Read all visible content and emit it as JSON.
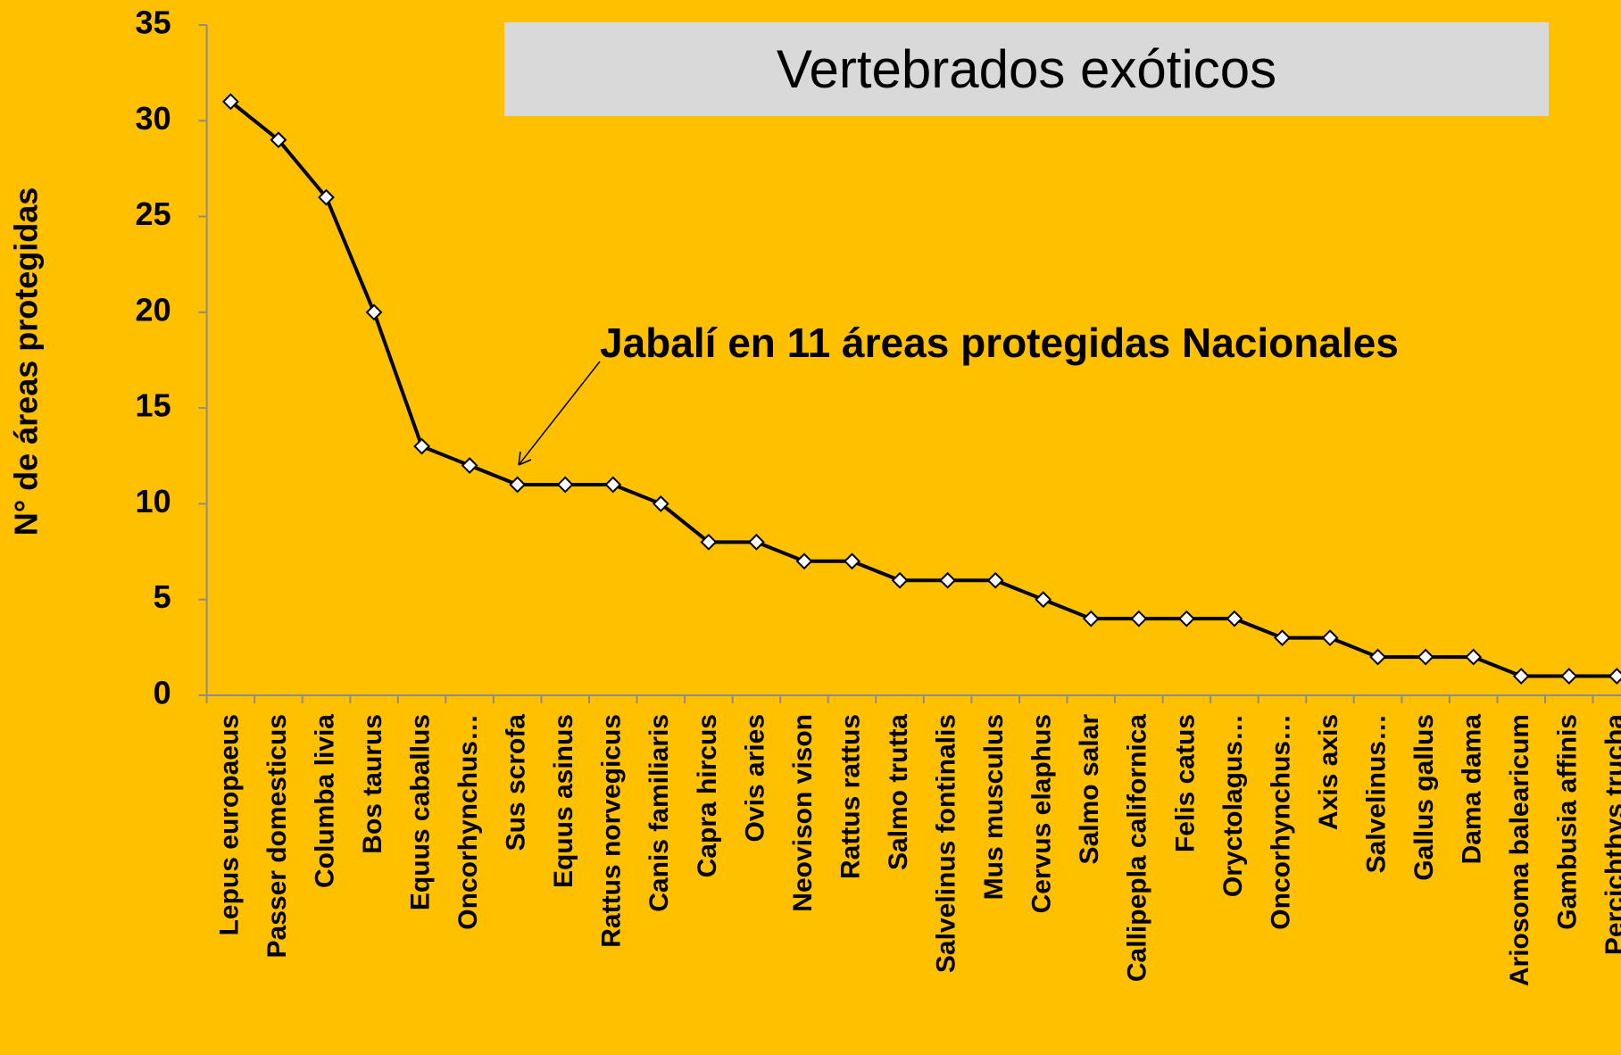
{
  "chart_data": {
    "type": "line",
    "title": "Vertebrados exóticos",
    "y_label": "N° de áreas protegidas",
    "annotation": "Jabalí en 11 áreas protegidas Nacionales",
    "categories": [
      "Lepus europaeus",
      "Passer domesticus",
      "Columba livia",
      "Bos taurus",
      "Equus caballus",
      "Oncorhynchus…",
      "Sus scrofa",
      "Equus asinus",
      "Rattus norvegicus",
      "Canis familiaris",
      "Capra hircus",
      "Ovis aries",
      "Neovison vison",
      "Rattus rattus",
      "Salmo trutta",
      "Salvelinus fontinalis",
      "Mus musculus",
      "Cervus elaphus",
      "Salmo salar",
      "Callipepla californica",
      "Felis catus",
      "Oryctolagus…",
      "Oncorhynchus…",
      "Axis axis",
      "Salvelinus…",
      "Gallus gallus",
      "Dama dama",
      "Ariosoma balearicum",
      "Gambusia affinis",
      "Percichthys trucha"
    ],
    "values": [
      31,
      29,
      26,
      20,
      13,
      12,
      11,
      11,
      11,
      10,
      8,
      8,
      7,
      7,
      6,
      6,
      6,
      5,
      4,
      4,
      4,
      4,
      3,
      3,
      2,
      2,
      2,
      1,
      1,
      1
    ],
    "color": "#000000",
    "ylim": [
      0,
      35
    ],
    "yticks": [
      0,
      5,
      10,
      15,
      20,
      25,
      30,
      35
    ]
  }
}
